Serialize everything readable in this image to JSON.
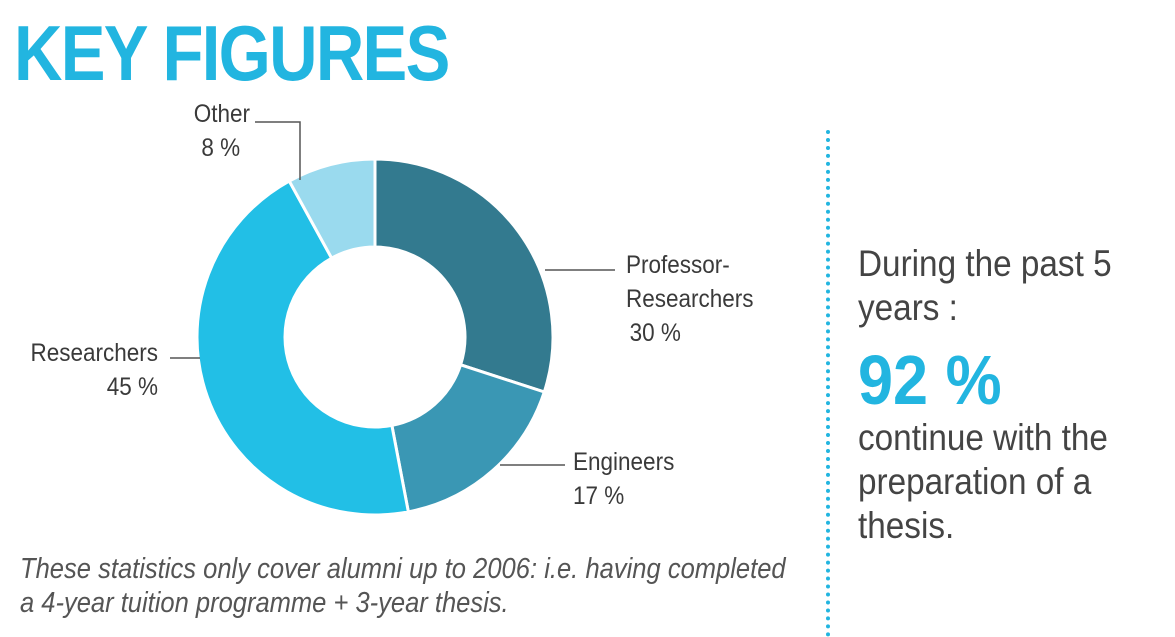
{
  "chart_data": {
    "type": "pie",
    "donut": true,
    "title": "KEY FIGURES",
    "categories": [
      "Professor-Researchers",
      "Engineers",
      "Researchers",
      "Other"
    ],
    "values": [
      30,
      17,
      45,
      8
    ],
    "value_labels": [
      "30 %",
      "17 %",
      "45 %",
      "8 %"
    ],
    "colors": [
      "#337a8f",
      "#3a97b4",
      "#22bfe6",
      "#9adaee"
    ],
    "note": "These statistics only cover alumni up to 2006: i.e. having completed a 4-year tuition programme + 3-year thesis."
  },
  "sidebar": {
    "intro": "During the past 5 years :",
    "highlight": "92 %",
    "text": "continue with the preparation of a thesis."
  }
}
